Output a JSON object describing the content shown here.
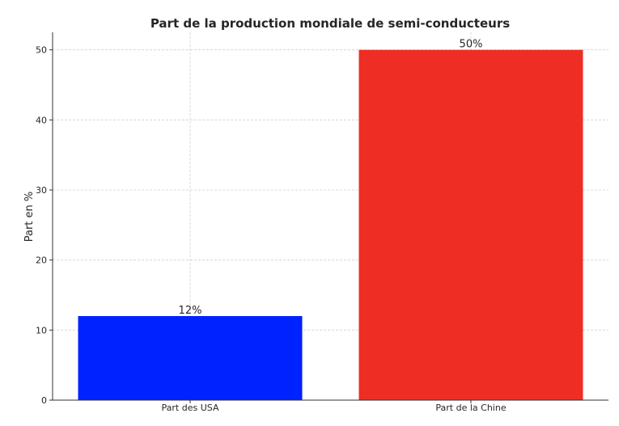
{
  "chart_data": {
    "type": "bar",
    "title": "Part de la production mondiale de semi-conducteurs",
    "xlabel": "",
    "ylabel": "Part en %",
    "categories": [
      "Part des USA",
      "Part de la Chine"
    ],
    "values": [
      12,
      50
    ],
    "data_labels": [
      "12%",
      "50%"
    ],
    "colors": [
      "#0022ff",
      "#ee2e24"
    ],
    "ylim": [
      0,
      52.5
    ],
    "yticks": [
      0,
      10,
      20,
      30,
      40,
      50
    ],
    "grid": true,
    "legend": "none"
  }
}
